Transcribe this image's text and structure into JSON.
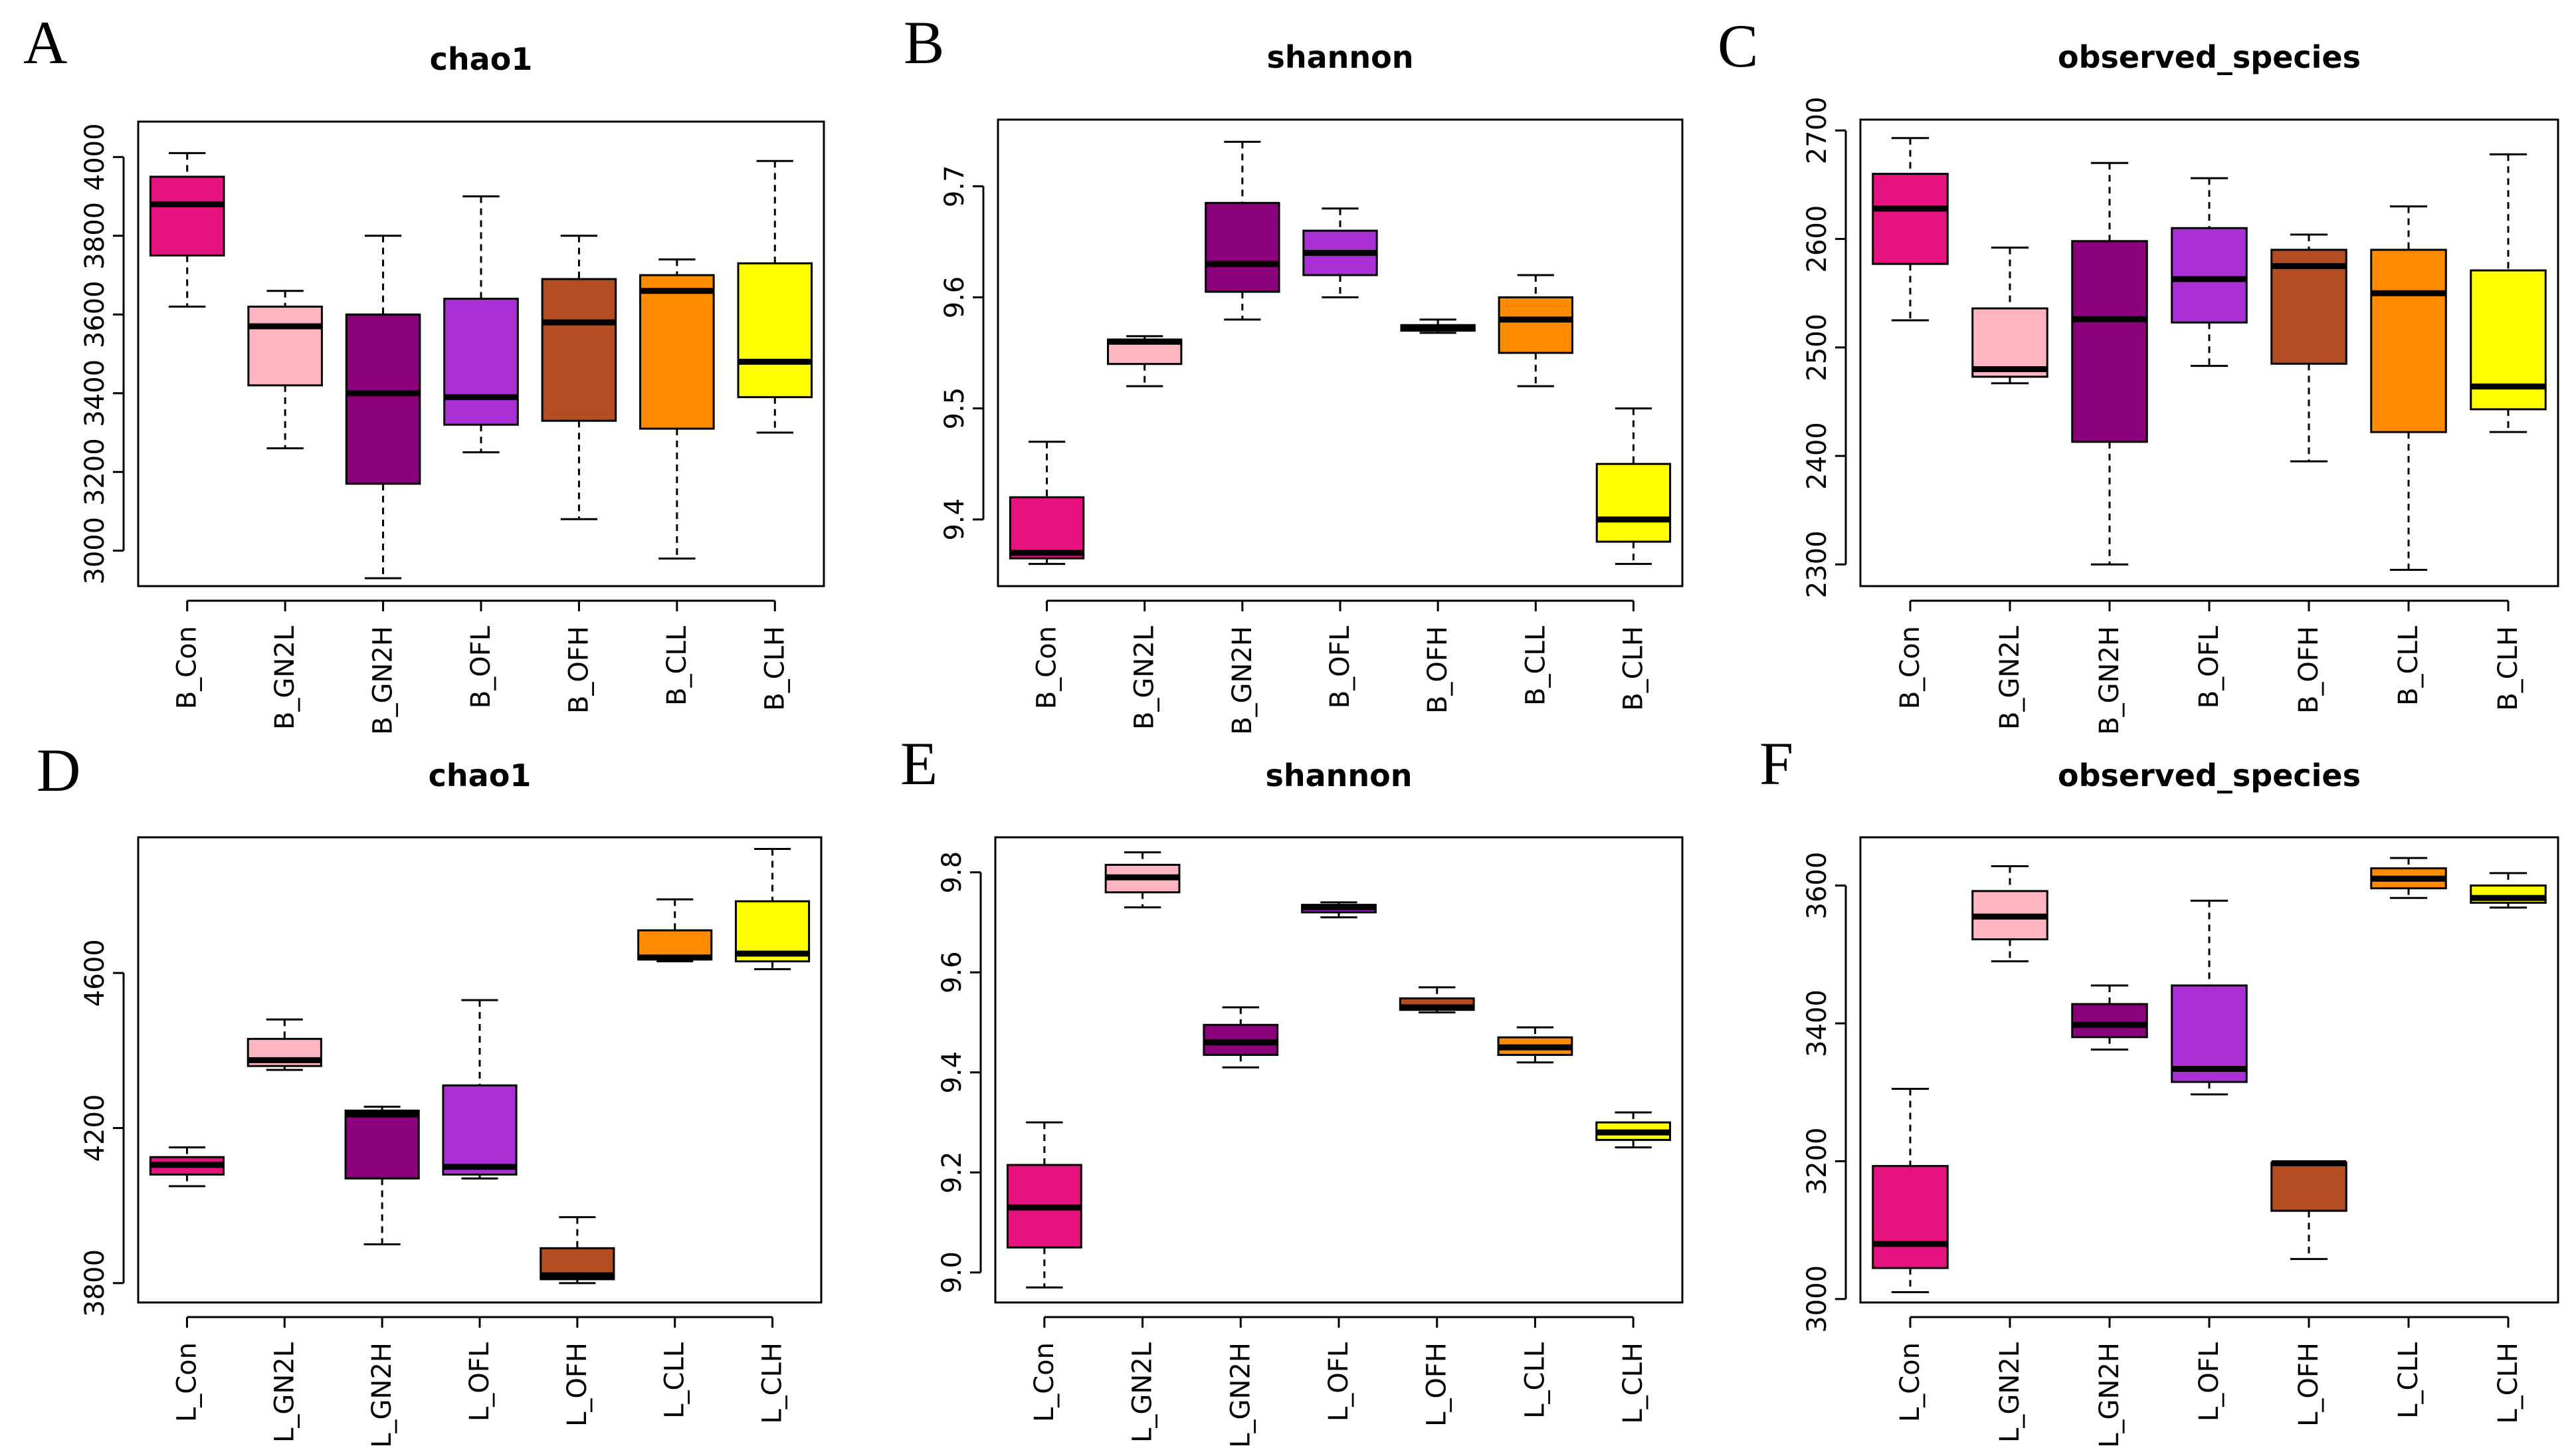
{
  "colors": [
    "#E6127F",
    "#FFB6C1",
    "#8B007B",
    "#AA2FD4",
    "#B34D22",
    "#FF8C00",
    "#FFFF00"
  ],
  "chart_data": [
    {
      "type": "boxplot",
      "letter": "A",
      "title": "chao1",
      "categories": [
        "B_Con",
        "B_GN2L",
        "B_GN2H",
        "B_OFL",
        "B_OFH",
        "B_CLL",
        "B_CLH"
      ],
      "ylim": [
        2910,
        4090
      ],
      "yticks": [
        3000,
        3200,
        3400,
        3600,
        3800,
        4000
      ],
      "boxes": [
        {
          "min": 3620,
          "q1": 3750,
          "median": 3880,
          "q3": 3950,
          "max": 4010
        },
        {
          "min": 3260,
          "q1": 3420,
          "median": 3570,
          "q3": 3620,
          "max": 3660
        },
        {
          "min": 2930,
          "q1": 3170,
          "median": 3400,
          "q3": 3600,
          "max": 3800
        },
        {
          "min": 3250,
          "q1": 3320,
          "median": 3390,
          "q3": 3640,
          "max": 3900
        },
        {
          "min": 3080,
          "q1": 3330,
          "median": 3580,
          "q3": 3690,
          "max": 3800
        },
        {
          "min": 2980,
          "q1": 3310,
          "median": 3660,
          "q3": 3700,
          "max": 3740
        },
        {
          "min": 3300,
          "q1": 3390,
          "median": 3480,
          "q3": 3730,
          "max": 3990
        }
      ]
    },
    {
      "type": "boxplot",
      "letter": "B",
      "title": "shannon",
      "categories": [
        "B_Con",
        "B_GN2L",
        "B_GN2H",
        "B_OFL",
        "B_OFH",
        "B_CLL",
        "B_CLH"
      ],
      "ylim": [
        9.34,
        9.76
      ],
      "yticks": [
        9.4,
        9.5,
        9.6,
        9.7
      ],
      "boxes": [
        {
          "min": 9.36,
          "q1": 9.365,
          "median": 9.37,
          "q3": 9.42,
          "max": 9.47
        },
        {
          "min": 9.52,
          "q1": 9.54,
          "median": 9.56,
          "q3": 9.562,
          "max": 9.565
        },
        {
          "min": 9.58,
          "q1": 9.605,
          "median": 9.63,
          "q3": 9.685,
          "max": 9.74
        },
        {
          "min": 9.6,
          "q1": 9.62,
          "median": 9.64,
          "q3": 9.66,
          "max": 9.68
        },
        {
          "min": 9.568,
          "q1": 9.57,
          "median": 9.572,
          "q3": 9.575,
          "max": 9.58
        },
        {
          "min": 9.52,
          "q1": 9.55,
          "median": 9.58,
          "q3": 9.6,
          "max": 9.62
        },
        {
          "min": 9.36,
          "q1": 9.38,
          "median": 9.4,
          "q3": 9.45,
          "max": 9.5
        }
      ]
    },
    {
      "type": "boxplot",
      "letter": "C",
      "title": "observed_species",
      "categories": [
        "B_Con",
        "B_GN2L",
        "B_GN2H",
        "B_OFL",
        "B_OFH",
        "B_CLL",
        "B_CLH"
      ],
      "ylim": [
        2280,
        2710
      ],
      "yticks": [
        2300,
        2400,
        2500,
        2600,
        2700
      ],
      "boxes": [
        {
          "min": 2525,
          "q1": 2577,
          "median": 2628,
          "q3": 2660,
          "max": 2693
        },
        {
          "min": 2467,
          "q1": 2473,
          "median": 2480,
          "q3": 2536,
          "max": 2592
        },
        {
          "min": 2300,
          "q1": 2413,
          "median": 2526,
          "q3": 2598,
          "max": 2670
        },
        {
          "min": 2483,
          "q1": 2523,
          "median": 2563,
          "q3": 2610,
          "max": 2656
        },
        {
          "min": 2395,
          "q1": 2485,
          "median": 2575,
          "q3": 2590,
          "max": 2604
        },
        {
          "min": 2295,
          "q1": 2422,
          "median": 2550,
          "q3": 2590,
          "max": 2630
        },
        {
          "min": 2422,
          "q1": 2443,
          "median": 2464,
          "q3": 2571,
          "max": 2678
        }
      ]
    },
    {
      "type": "boxplot",
      "letter": "D",
      "title": "chao1",
      "categories": [
        "L_Con",
        "L_GN2L",
        "L_GN2H",
        "L_OFL",
        "L_OFH",
        "L_CLL",
        "L_CLH"
      ],
      "ylim": [
        3750,
        4950
      ],
      "yticks": [
        3800,
        4200,
        4600
      ],
      "boxes": [
        {
          "min": 4050,
          "q1": 4080,
          "median": 4105,
          "q3": 4125,
          "max": 4150
        },
        {
          "min": 4350,
          "q1": 4360,
          "median": 4375,
          "q3": 4430,
          "max": 4480
        },
        {
          "min": 3900,
          "q1": 4070,
          "median": 4235,
          "q3": 4245,
          "max": 4255
        },
        {
          "min": 4070,
          "q1": 4080,
          "median": 4100,
          "q3": 4310,
          "max": 4530
        },
        {
          "min": 3800,
          "q1": 3810,
          "median": 3820,
          "q3": 3890,
          "max": 3970
        },
        {
          "min": 4630,
          "q1": 4635,
          "median": 4640,
          "q3": 4710,
          "max": 4790
        },
        {
          "min": 4610,
          "q1": 4630,
          "median": 4650,
          "q3": 4785,
          "max": 4920
        }
      ]
    },
    {
      "type": "boxplot",
      "letter": "E",
      "title": "shannon",
      "categories": [
        "L_Con",
        "L_GN2L",
        "L_GN2H",
        "L_OFL",
        "L_OFH",
        "L_CLL",
        "L_CLH"
      ],
      "ylim": [
        8.94,
        9.87
      ],
      "yticks": [
        9.0,
        9.2,
        9.4,
        9.6,
        9.8
      ],
      "boxes": [
        {
          "min": 8.97,
          "q1": 9.05,
          "median": 9.13,
          "q3": 9.215,
          "max": 9.3
        },
        {
          "min": 9.73,
          "q1": 9.76,
          "median": 9.79,
          "q3": 9.815,
          "max": 9.84
        },
        {
          "min": 9.41,
          "q1": 9.435,
          "median": 9.46,
          "q3": 9.495,
          "max": 9.53
        },
        {
          "min": 9.71,
          "q1": 9.72,
          "median": 9.73,
          "q3": 9.735,
          "max": 9.74
        },
        {
          "min": 9.52,
          "q1": 9.525,
          "median": 9.53,
          "q3": 9.548,
          "max": 9.57
        },
        {
          "min": 9.42,
          "q1": 9.435,
          "median": 9.45,
          "q3": 9.47,
          "max": 9.49
        },
        {
          "min": 9.25,
          "q1": 9.265,
          "median": 9.28,
          "q3": 9.3,
          "max": 9.32
        }
      ]
    },
    {
      "type": "boxplot",
      "letter": "F",
      "title": "observed_species",
      "categories": [
        "L_Con",
        "L_GN2L",
        "L_GN2H",
        "L_OFL",
        "L_OFH",
        "L_CLL",
        "L_CLH"
      ],
      "ylim": [
        2995,
        3670
      ],
      "yticks": [
        3000,
        3200,
        3400,
        3600
      ],
      "boxes": [
        {
          "min": 3010,
          "q1": 3045,
          "median": 3080,
          "q3": 3193,
          "max": 3305
        },
        {
          "min": 3490,
          "q1": 3522,
          "median": 3555,
          "q3": 3592,
          "max": 3628
        },
        {
          "min": 3362,
          "q1": 3380,
          "median": 3398,
          "q3": 3428,
          "max": 3455
        },
        {
          "min": 3297,
          "q1": 3315,
          "median": 3334,
          "q3": 3455,
          "max": 3578
        },
        {
          "min": 3058,
          "q1": 3128,
          "median": 3197,
          "q3": 3198,
          "max": 3199
        },
        {
          "min": 3582,
          "q1": 3596,
          "median": 3610,
          "q3": 3625,
          "max": 3640
        },
        {
          "min": 3568,
          "q1": 3575,
          "median": 3582,
          "q3": 3600,
          "max": 3618
        }
      ]
    }
  ]
}
